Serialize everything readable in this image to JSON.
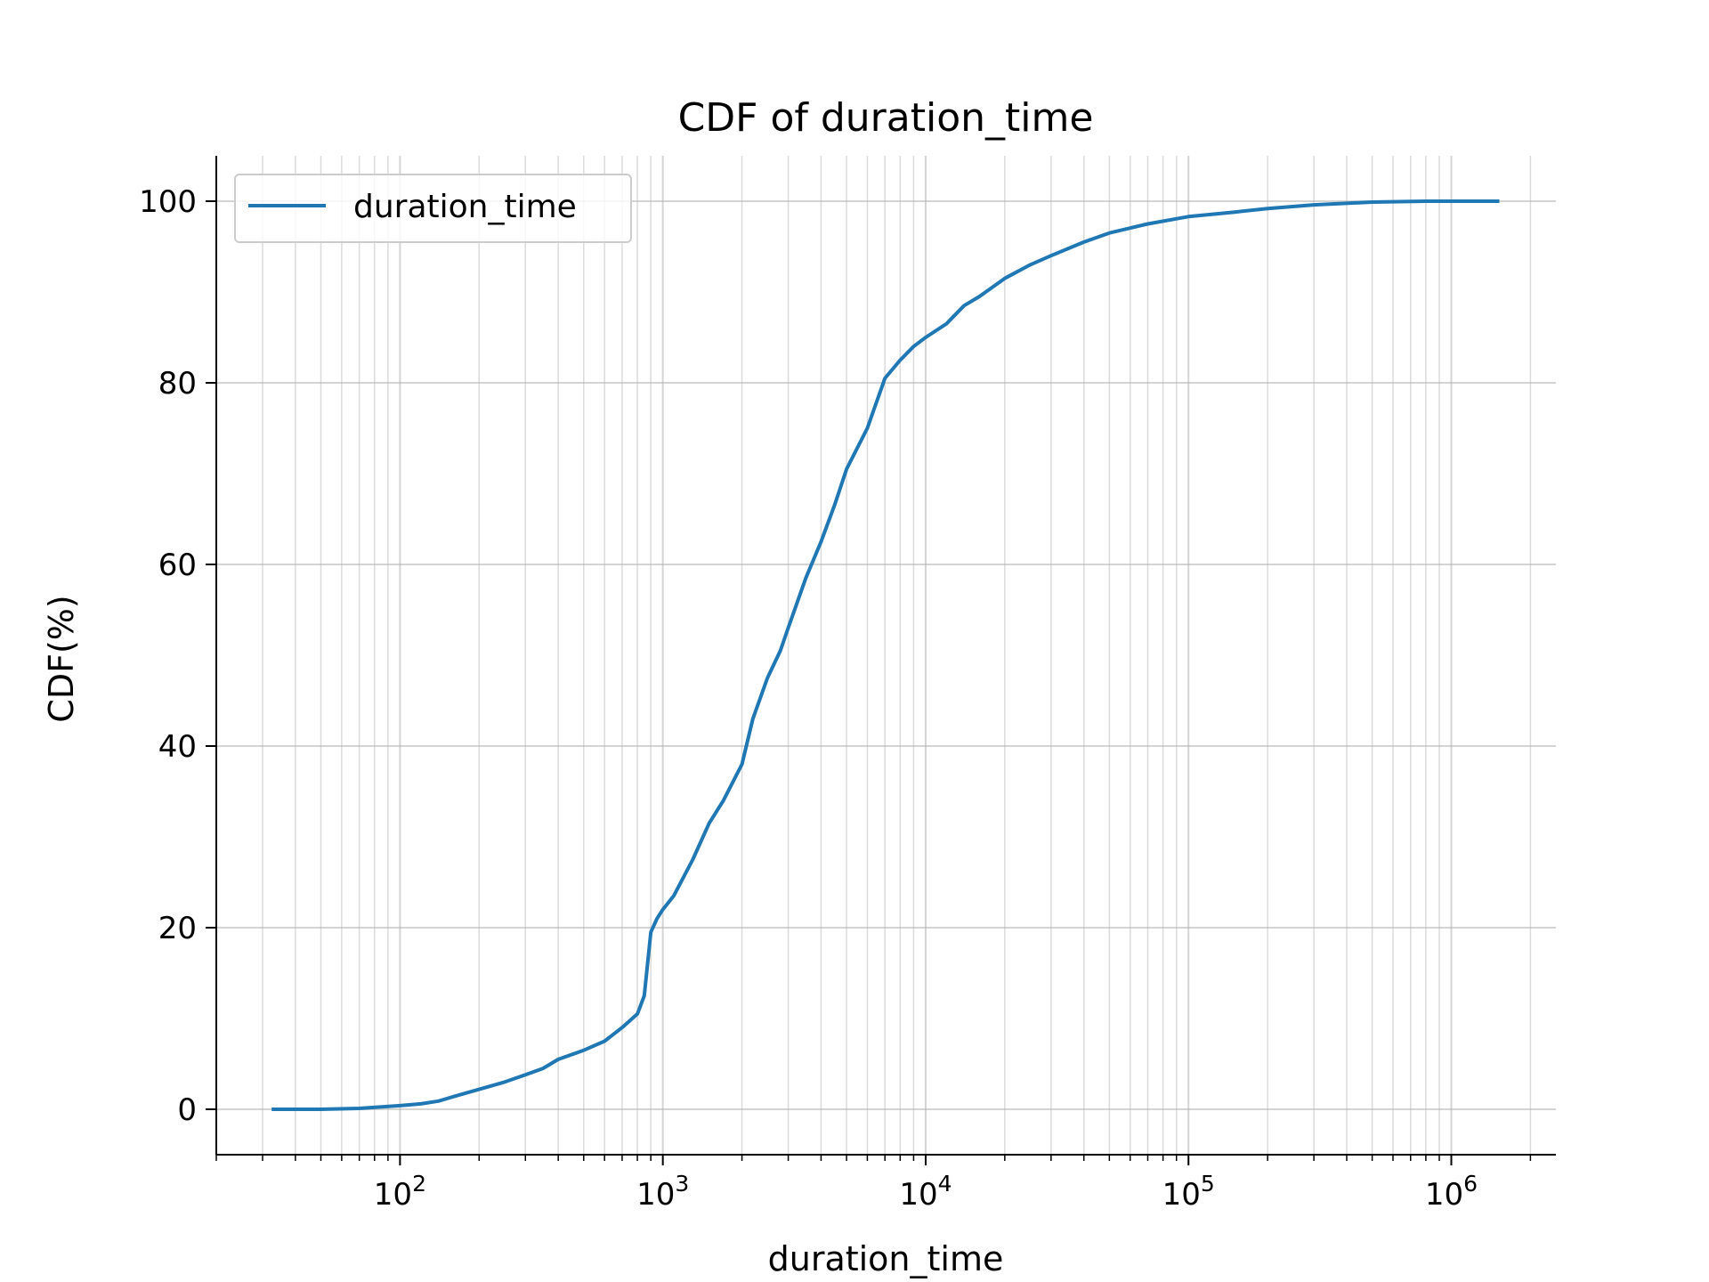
{
  "chart_data": {
    "type": "line",
    "title": "CDF of duration_time",
    "xlabel": "duration_time",
    "ylabel": "CDF(%)",
    "xscale": "log",
    "xlim": [
      20,
      2500000
    ],
    "ylim": [
      -5,
      105
    ],
    "grid": "both-major-minor",
    "legend_position": "top-left",
    "x_ticks": [
      {
        "value": 100,
        "base": "10",
        "exp": "2"
      },
      {
        "value": 1000,
        "base": "10",
        "exp": "3"
      },
      {
        "value": 10000,
        "base": "10",
        "exp": "4"
      },
      {
        "value": 100000,
        "base": "10",
        "exp": "5"
      },
      {
        "value": 1000000,
        "base": "10",
        "exp": "6"
      }
    ],
    "y_ticks": [
      "0",
      "20",
      "40",
      "60",
      "80",
      "100"
    ],
    "series": [
      {
        "name": "duration_time",
        "color": "#1f77b4",
        "x": [
          33,
          50,
          70,
          100,
          120,
          140,
          160,
          200,
          250,
          300,
          350,
          400,
          500,
          600,
          700,
          800,
          850,
          900,
          950,
          1000,
          1100,
          1300,
          1500,
          1700,
          2000,
          2200,
          2500,
          2800,
          3000,
          3500,
          4000,
          4500,
          5000,
          6000,
          7000,
          8000,
          9000,
          10000,
          12000,
          14000,
          16000,
          20000,
          25000,
          30000,
          40000,
          50000,
          70000,
          100000,
          150000,
          200000,
          300000,
          500000,
          800000,
          1500000
        ],
        "y": [
          0,
          0,
          0.1,
          0.4,
          0.6,
          0.9,
          1.4,
          2.2,
          3.0,
          3.8,
          4.5,
          5.5,
          6.5,
          7.5,
          9.0,
          10.5,
          12.5,
          19.5,
          21.0,
          22.0,
          23.5,
          27.5,
          31.5,
          34.0,
          38.0,
          43.0,
          47.5,
          50.5,
          53.0,
          58.5,
          62.5,
          66.5,
          70.5,
          75.0,
          80.5,
          82.5,
          84.0,
          85.0,
          86.5,
          88.5,
          89.5,
          91.5,
          93.0,
          94.0,
          95.5,
          96.5,
          97.5,
          98.3,
          98.8,
          99.2,
          99.6,
          99.9,
          100.0,
          100.0
        ]
      }
    ]
  }
}
